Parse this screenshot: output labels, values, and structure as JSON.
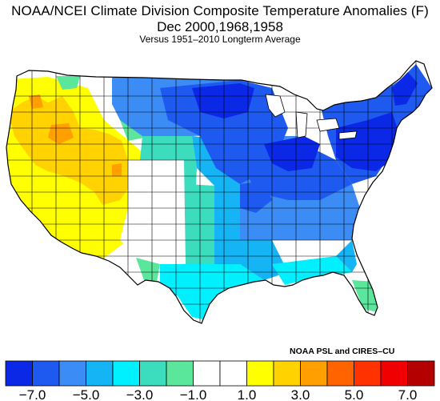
{
  "title": {
    "line1": "NOAA/NCEI Climate Division Composite Temperature Anomalies (F)",
    "line2": "Dec   2000,1968,1958",
    "line3": "Versus 1951–2010 Longterm Average"
  },
  "credit": "NOAA PSL and CIRES–CU",
  "map": {
    "region": "Contiguous United States climate divisions",
    "units": "F"
  },
  "legend": {
    "bins": [
      {
        "color": "#0a28e6"
      },
      {
        "color": "#1e5af0"
      },
      {
        "color": "#3c8cf5"
      },
      {
        "color": "#14b4f5"
      },
      {
        "color": "#00f0ff"
      },
      {
        "color": "#3cdcbe"
      },
      {
        "color": "#5ae69b"
      },
      {
        "color": "#ffffff"
      },
      {
        "color": "#ffffff"
      },
      {
        "color": "#ffff00"
      },
      {
        "color": "#ffd200"
      },
      {
        "color": "#ffa000"
      },
      {
        "color": "#ff6400"
      },
      {
        "color": "#ff3200"
      },
      {
        "color": "#f00000"
      },
      {
        "color": "#b40000"
      }
    ],
    "tick_labels": [
      "−7.0",
      "−5.0",
      "−3.0",
      "−1.0",
      "1.0",
      "3.0",
      "5.0",
      "7.0"
    ]
  },
  "colors": {
    "deep_cold": "#0a28e6",
    "cold": "#1e5af0",
    "cool": "#3c8cf5",
    "mild_cool": "#14b4f5",
    "slight_cool": "#00f0ff",
    "near_normal_cool": "#3cdcbe",
    "near_normal_cool2": "#5ae69b",
    "near_normal": "#ffffff",
    "slight_warm": "#ffff00",
    "warm": "#ffd200",
    "warmer": "#ffa000"
  }
}
